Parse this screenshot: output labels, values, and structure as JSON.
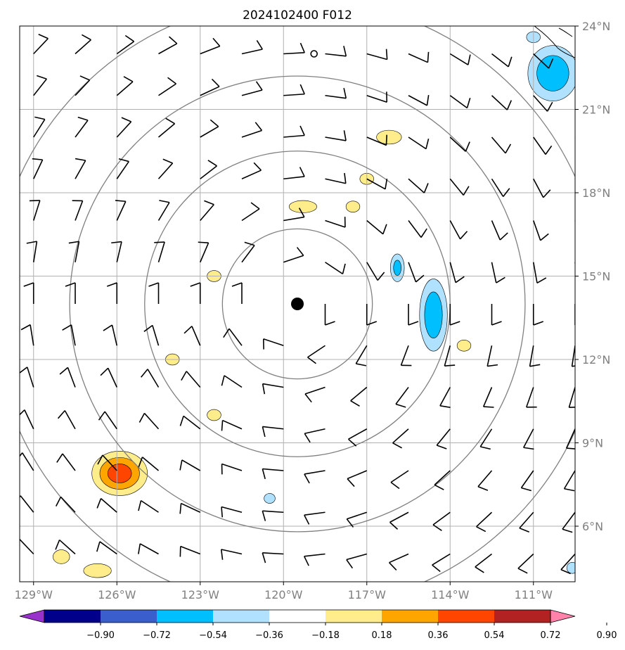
{
  "chart_data": {
    "type": "map",
    "title": "2024102400 F012",
    "projection": "lat-lon",
    "lon_range": [
      -129.5,
      -109.5
    ],
    "lat_range": [
      4,
      24
    ],
    "lon_ticks": [
      -129,
      -126,
      -123,
      -120,
      -117,
      -114,
      -111
    ],
    "lon_tick_labels": [
      "129°W",
      "126°W",
      "123°W",
      "120°W",
      "117°W",
      "114°W",
      "111°W"
    ],
    "lat_ticks": [
      6,
      9,
      12,
      15,
      18,
      21,
      24
    ],
    "lat_tick_labels": [
      "6°N",
      "9°N",
      "12°N",
      "15°N",
      "18°N",
      "21°N",
      "24°N"
    ],
    "grid": true,
    "center": {
      "lon": -119.5,
      "lat": 14.0
    },
    "range_rings_deg": [
      2.7,
      5.5,
      8.2,
      11.0
    ],
    "open_marker": {
      "lon": -118.9,
      "lat": 23.0
    },
    "wind_barbs": {
      "lons": [
        -129,
        -127.5,
        -126,
        -124.5,
        -123,
        -121.5,
        -120,
        -118.5,
        -117,
        -115.5,
        -114,
        -112.5,
        -111,
        -109.5
      ],
      "lats": [
        5,
        6.5,
        8,
        9.5,
        11,
        12.5,
        14,
        15.5,
        17,
        18.5,
        20,
        21.5,
        23
      ],
      "style": "cyclonic circulation, barbs with one long flag"
    },
    "shaded_anomalies": [
      {
        "lon": -125.9,
        "lat": 7.9,
        "rx": 1.0,
        "ry": 0.8,
        "value": 0.63
      },
      {
        "lon": -128.0,
        "lat": 4.9,
        "rx": 0.3,
        "ry": 0.25,
        "value": 0.28
      },
      {
        "lon": -126.7,
        "lat": 4.4,
        "rx": 0.5,
        "ry": 0.25,
        "value": 0.27
      },
      {
        "lon": -124.0,
        "lat": 12.0,
        "rx": 0.25,
        "ry": 0.2,
        "value": 0.25
      },
      {
        "lon": -122.5,
        "lat": 15.0,
        "rx": 0.25,
        "ry": 0.2,
        "value": 0.24
      },
      {
        "lon": -122.5,
        "lat": 10.0,
        "rx": 0.25,
        "ry": 0.2,
        "value": 0.24
      },
      {
        "lon": -120.5,
        "lat": 7.0,
        "rx": 0.2,
        "ry": 0.18,
        "value": -0.3
      },
      {
        "lon": -119.3,
        "lat": 17.5,
        "rx": 0.5,
        "ry": 0.22,
        "value": 0.28
      },
      {
        "lon": -117.5,
        "lat": 17.5,
        "rx": 0.25,
        "ry": 0.2,
        "value": 0.26
      },
      {
        "lon": -117.0,
        "lat": 18.5,
        "rx": 0.25,
        "ry": 0.2,
        "value": 0.23
      },
      {
        "lon": -116.2,
        "lat": 20.0,
        "rx": 0.45,
        "ry": 0.25,
        "value": 0.32
      },
      {
        "lon": -115.9,
        "lat": 15.3,
        "rx": 0.25,
        "ry": 0.5,
        "value": -0.4
      },
      {
        "lon": -114.6,
        "lat": 13.6,
        "rx": 0.5,
        "ry": 1.3,
        "value": -0.5
      },
      {
        "lon": -113.5,
        "lat": 12.5,
        "rx": 0.25,
        "ry": 0.2,
        "value": 0.24
      },
      {
        "lon": -110.3,
        "lat": 22.3,
        "rx": 0.9,
        "ry": 1.0,
        "value": -0.5
      },
      {
        "lon": -111.0,
        "lat": 23.6,
        "rx": 0.25,
        "ry": 0.2,
        "value": -0.3
      },
      {
        "lon": -109.6,
        "lat": 4.5,
        "rx": 0.2,
        "ry": 0.2,
        "value": -0.3
      }
    ],
    "colorbar": {
      "levels": [
        -0.9,
        -0.72,
        -0.54,
        -0.36,
        -0.18,
        0.18,
        0.36,
        0.54,
        0.72,
        0.9
      ],
      "tick_labels": [
        "−0.90",
        "−0.72",
        "−0.54",
        "−0.36",
        "−0.18",
        "0.18",
        "0.36",
        "0.54",
        "0.72",
        "0.90"
      ],
      "colors": [
        "#9932CC",
        "#00008B",
        "#3A5FCD",
        "#00BFFF",
        "#B0E2FF",
        "#FFFFFF",
        "#FFEC8B",
        "#FFA500",
        "#FF4500",
        "#B22222",
        "#FF82AB"
      ],
      "extend": "both"
    }
  }
}
